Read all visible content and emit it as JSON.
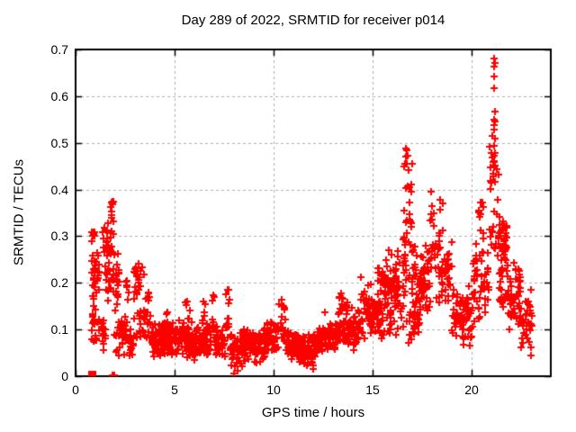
{
  "colors": {
    "background": "#ffffff",
    "marker": "#ff0000",
    "grid": "#b0b0b0",
    "axis": "#000000",
    "text": "#000000"
  },
  "chart_data": {
    "type": "scatter",
    "title": "Day 289 of 2022, SRMTID for receiver p014",
    "xlabel": "GPS time / hours",
    "ylabel": "SRMTID / TECUs",
    "xlim": [
      0,
      24
    ],
    "ylim": [
      0,
      0.7
    ],
    "grid": true,
    "legend": "none",
    "marker": {
      "shape": "plus",
      "color": "#ff0000",
      "size": 9
    },
    "xticks": [
      {
        "v": 0,
        "label": "0"
      },
      {
        "v": 5,
        "label": "5"
      },
      {
        "v": 10,
        "label": "10"
      },
      {
        "v": 15,
        "label": "15"
      },
      {
        "v": 20,
        "label": "20"
      }
    ],
    "yticks": [
      {
        "v": 0,
        "label": "0"
      },
      {
        "v": 0.1,
        "label": "0.1"
      },
      {
        "v": 0.2,
        "label": "0.2"
      },
      {
        "v": 0.3,
        "label": "0.3"
      },
      {
        "v": 0.4,
        "label": "0.4"
      },
      {
        "v": 0.5,
        "label": "0.5"
      },
      {
        "v": 0.6,
        "label": "0.6"
      },
      {
        "v": 0.7,
        "label": "0.7"
      }
    ],
    "render_seed": 289,
    "cluster_segments": [
      [
        0.8,
        1.2,
        0.07,
        0.31,
        55,
        "u"
      ],
      [
        1.18,
        1.5,
        0.05,
        0.13,
        18,
        "c"
      ],
      [
        1.35,
        1.55,
        0.22,
        0.32,
        8,
        "u"
      ],
      [
        1.52,
        1.72,
        0.13,
        0.34,
        22,
        "u"
      ],
      [
        1.7,
        1.92,
        0.17,
        0.375,
        26,
        "u"
      ],
      [
        1.95,
        2.18,
        0.05,
        0.3,
        26,
        "u"
      ],
      [
        2.18,
        2.55,
        0.04,
        0.14,
        22,
        "c"
      ],
      [
        2.52,
        2.7,
        0.06,
        0.21,
        12,
        "u"
      ],
      [
        2.72,
        2.95,
        0.04,
        0.12,
        14,
        "c"
      ],
      [
        2.95,
        3.45,
        0.08,
        0.235,
        38,
        "u"
      ],
      [
        3.45,
        3.8,
        0.06,
        0.19,
        20,
        "c"
      ],
      [
        3.8,
        4.5,
        0.03,
        0.12,
        60,
        "c"
      ],
      [
        4.5,
        4.72,
        0.05,
        0.16,
        12,
        "u"
      ],
      [
        4.5,
        5.5,
        0.035,
        0.125,
        85,
        "c"
      ],
      [
        5.55,
        5.85,
        0.05,
        0.16,
        12,
        "u"
      ],
      [
        5.5,
        6.85,
        0.03,
        0.12,
        110,
        "c"
      ],
      [
        6.35,
        6.55,
        0.05,
        0.16,
        10,
        "u"
      ],
      [
        6.85,
        7.05,
        0.05,
        0.175,
        10,
        "u"
      ],
      [
        7.05,
        7.55,
        0.03,
        0.11,
        40,
        "c"
      ],
      [
        7.55,
        7.8,
        0.08,
        0.185,
        12,
        "u"
      ],
      [
        7.8,
        8.45,
        0.01,
        0.1,
        55,
        "c"
      ],
      [
        8.45,
        9.6,
        0.025,
        0.11,
        95,
        "c"
      ],
      [
        9.6,
        10.25,
        0.05,
        0.125,
        55,
        "c"
      ],
      [
        10.25,
        10.6,
        0.06,
        0.165,
        16,
        "u"
      ],
      [
        10.6,
        11.3,
        0.03,
        0.1,
        60,
        "c"
      ],
      [
        11.3,
        12.05,
        0.015,
        0.09,
        65,
        "c"
      ],
      [
        12.05,
        12.45,
        0.04,
        0.105,
        35,
        "c"
      ],
      [
        12.45,
        12.7,
        0.05,
        0.14,
        12,
        "u"
      ],
      [
        12.7,
        13.15,
        0.05,
        0.12,
        35,
        "c"
      ],
      [
        13.15,
        13.75,
        0.07,
        0.175,
        48,
        "u"
      ],
      [
        13.75,
        14.35,
        0.05,
        0.155,
        45,
        "c"
      ],
      [
        14.35,
        15.25,
        0.07,
        0.22,
        65,
        "c"
      ],
      [
        15.25,
        16.4,
        0.07,
        0.27,
        110,
        "c"
      ],
      [
        16.4,
        17.4,
        0.06,
        0.17,
        30,
        "c"
      ],
      [
        16.55,
        16.8,
        0.17,
        0.49,
        26,
        "u"
      ],
      [
        16.82,
        17.0,
        0.2,
        0.46,
        16,
        "u"
      ],
      [
        17.0,
        17.9,
        0.1,
        0.3,
        70,
        "c"
      ],
      [
        17.9,
        18.2,
        0.22,
        0.4,
        18,
        "u"
      ],
      [
        18.2,
        19.0,
        0.14,
        0.31,
        48,
        "c"
      ],
      [
        18.35,
        18.55,
        0.3,
        0.375,
        6,
        "u"
      ],
      [
        19.0,
        20.1,
        0.06,
        0.2,
        70,
        "c"
      ],
      [
        20.1,
        20.85,
        0.1,
        0.3,
        48,
        "c"
      ],
      [
        20.35,
        20.6,
        0.29,
        0.375,
        10,
        "u"
      ],
      [
        20.9,
        21.35,
        0.27,
        0.52,
        30,
        "u"
      ],
      [
        21.3,
        21.8,
        0.24,
        0.35,
        42,
        "c"
      ],
      [
        21.35,
        21.85,
        0.14,
        0.24,
        22,
        "c"
      ],
      [
        21.85,
        22.5,
        0.09,
        0.26,
        48,
        "c"
      ],
      [
        22.5,
        23.05,
        0.04,
        0.2,
        32,
        "c"
      ]
    ],
    "notable_points": [
      [
        1.87,
        0.002
      ],
      [
        1.96,
        0.002
      ],
      [
        8.02,
        0.006
      ],
      [
        21.12,
        0.68
      ],
      [
        21.16,
        0.672
      ],
      [
        21.13,
        0.664
      ],
      [
        21.15,
        0.643
      ],
      [
        21.14,
        0.617
      ],
      [
        21.16,
        0.567
      ],
      [
        21.13,
        0.549
      ],
      [
        21.17,
        0.545
      ],
      [
        21.15,
        0.538
      ],
      [
        21.14,
        0.528
      ],
      [
        21.16,
        0.51
      ],
      [
        21.12,
        0.494
      ],
      [
        21.18,
        0.478
      ],
      [
        21.14,
        0.458
      ],
      [
        16.7,
        0.487
      ],
      [
        16.66,
        0.47
      ],
      [
        16.72,
        0.455
      ],
      [
        1.8,
        0.372
      ],
      [
        1.76,
        0.362
      ],
      [
        0.97,
        0.308
      ],
      [
        3.18,
        0.242
      ],
      [
        7.68,
        0.186
      ],
      [
        10.42,
        0.163
      ],
      [
        13.42,
        0.178
      ],
      [
        18.42,
        0.378
      ],
      [
        23.0,
        0.062
      ],
      [
        23.02,
        0.045
      ]
    ],
    "axis_blob": {
      "x": 0.81,
      "y": 0.004,
      "w": 9,
      "h": 9
    }
  }
}
